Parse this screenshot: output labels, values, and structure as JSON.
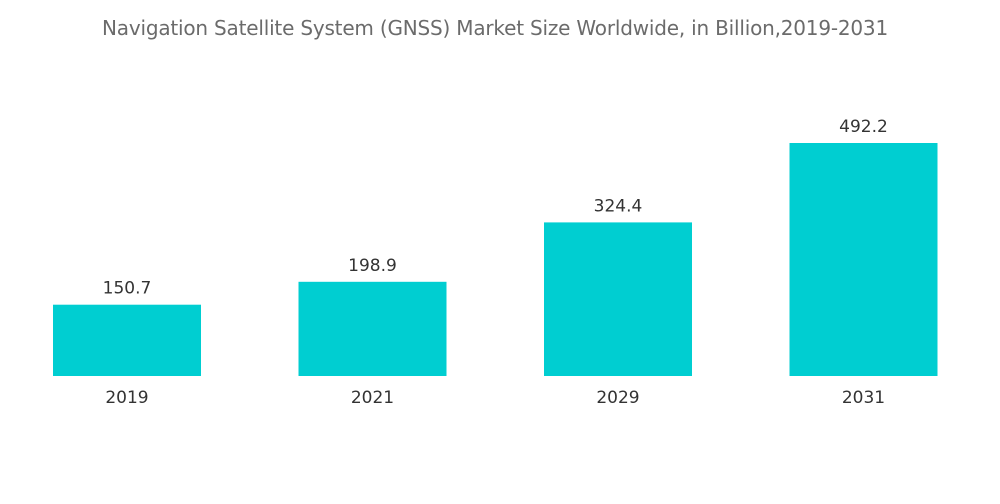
{
  "chart_data": {
    "type": "bar",
    "title": "Navigation Satellite System (GNSS) Market Size Worldwide, in Billion,2019-2031",
    "xlabel": "",
    "ylabel": "",
    "categories": [
      "2019",
      "2021",
      "2029",
      "2031"
    ],
    "values": [
      150.7,
      198.9,
      324.4,
      492.2
    ],
    "value_labels": [
      "150.7",
      "198.9",
      "324.4",
      "492.2"
    ],
    "ylim": [
      0,
      492.2
    ],
    "grid": false,
    "legend": "none",
    "bar_color": "#00CED1"
  }
}
